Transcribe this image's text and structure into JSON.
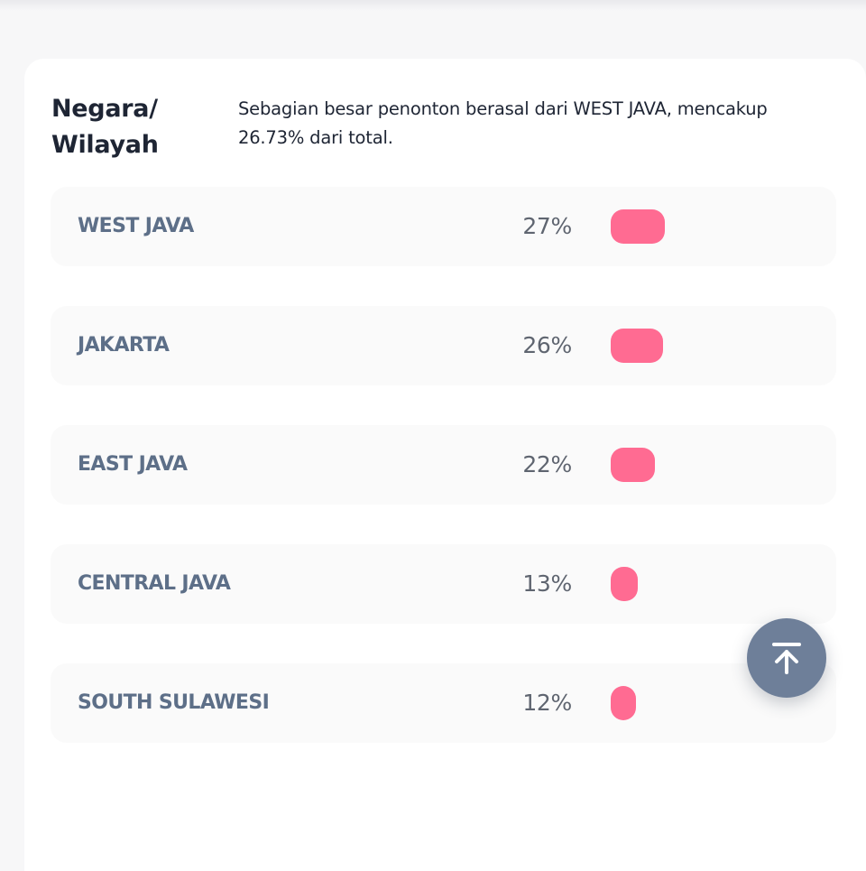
{
  "header": {
    "title": "Negara/ Wilayah",
    "summary": "Sebagian besar penonton berasal dari WEST JAVA, mencakup 26.73% dari total."
  },
  "regions": [
    {
      "label": "WEST JAVA",
      "percent": "27%",
      "share": 27
    },
    {
      "label": "JAKARTA",
      "percent": "26%",
      "share": 26
    },
    {
      "label": "EAST JAVA",
      "percent": "22%",
      "share": 22
    },
    {
      "label": "CENTRAL JAVA",
      "percent": "13%",
      "share": 13
    },
    {
      "label": "SOUTH SULAWESI",
      "percent": "12%",
      "share": 12
    }
  ],
  "colors": {
    "bar": "#ff6b92",
    "label": "#5d6f88",
    "scroll_button": "#6e7f99"
  },
  "icons": {
    "scroll_top": "arrow-up-to-line-icon"
  }
}
